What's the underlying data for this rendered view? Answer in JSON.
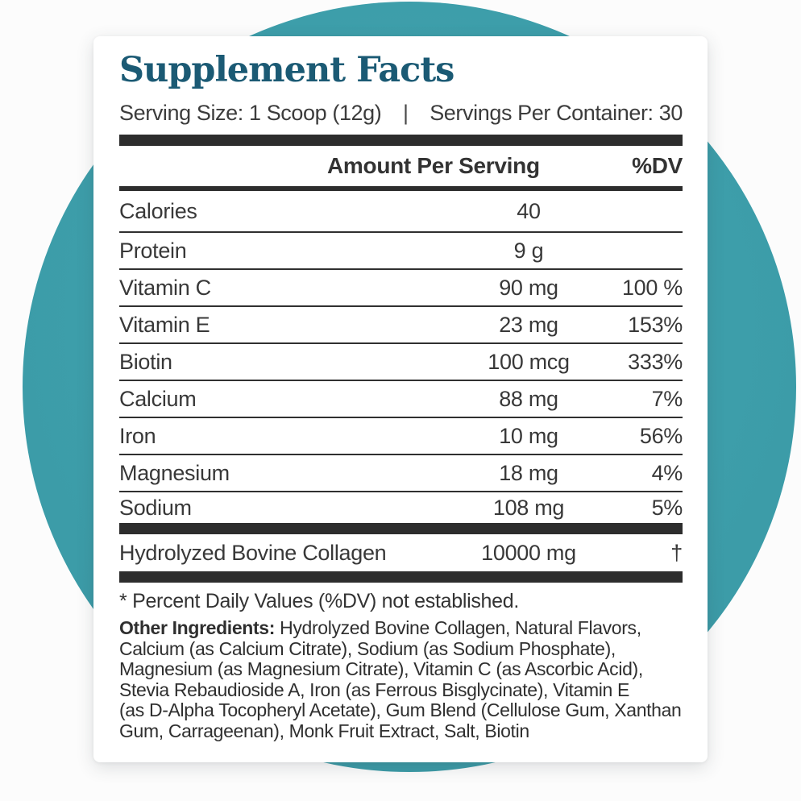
{
  "title": "Supplement Facts",
  "serving": {
    "size": "Serving Size: 1 Scoop (12g)",
    "separator": "|",
    "per_container": "Servings Per Container: 30"
  },
  "table": {
    "amount_header": "Amount Per Serving",
    "dv_header": "%DV",
    "rows": [
      {
        "name": "Calories",
        "amount": "40",
        "dv": ""
      },
      {
        "name": "Protein",
        "amount": "9 g",
        "dv": ""
      },
      {
        "name": "Vitamin C",
        "amount": "90 mg",
        "dv": "100 %"
      },
      {
        "name": "Vitamin E",
        "amount": "23 mg",
        "dv": "153%"
      },
      {
        "name": "Biotin",
        "amount": "100 mcg",
        "dv": "333%"
      },
      {
        "name": "Calcium",
        "amount": "88 mg",
        "dv": "7%"
      },
      {
        "name": "Iron",
        "amount": "10 mg",
        "dv": "56%"
      },
      {
        "name": "Magnesium",
        "amount": "18 mg",
        "dv": "4%"
      },
      {
        "name": "Sodium",
        "amount": "108 mg",
        "dv": "5%"
      }
    ],
    "collagen_row": {
      "name": "Hydrolyzed Bovine Collagen",
      "amount": "10000 mg",
      "dv": "†"
    }
  },
  "footnote": "* Percent Daily Values (%DV) not established.",
  "other_ingredients": {
    "label": "Other Ingredients:",
    "lines": [
      " Hydrolyzed Bovine Collagen, Natural Flavors,",
      "Calcium (as Calcium Citrate), Sodium (as Sodium Phosphate),",
      "Magnesium (as Magnesium Citrate), Vitamin C (as Ascorbic Acid),",
      "Stevia Rebaudioside A, Iron (as Ferrous Bisglycinate), Vitamin E",
      "(as D-Alpha Tocopheryl Acetate), Gum Blend (Cellulose Gum, Xanthan",
      "Gum, Carrageenan), Monk Fruit Extract, Salt, Biotin"
    ]
  },
  "colors": {
    "accent_teal": "#3d9eaa",
    "title_teal": "#1b5a74",
    "text": "#383838",
    "bar": "#2d2d2d"
  }
}
